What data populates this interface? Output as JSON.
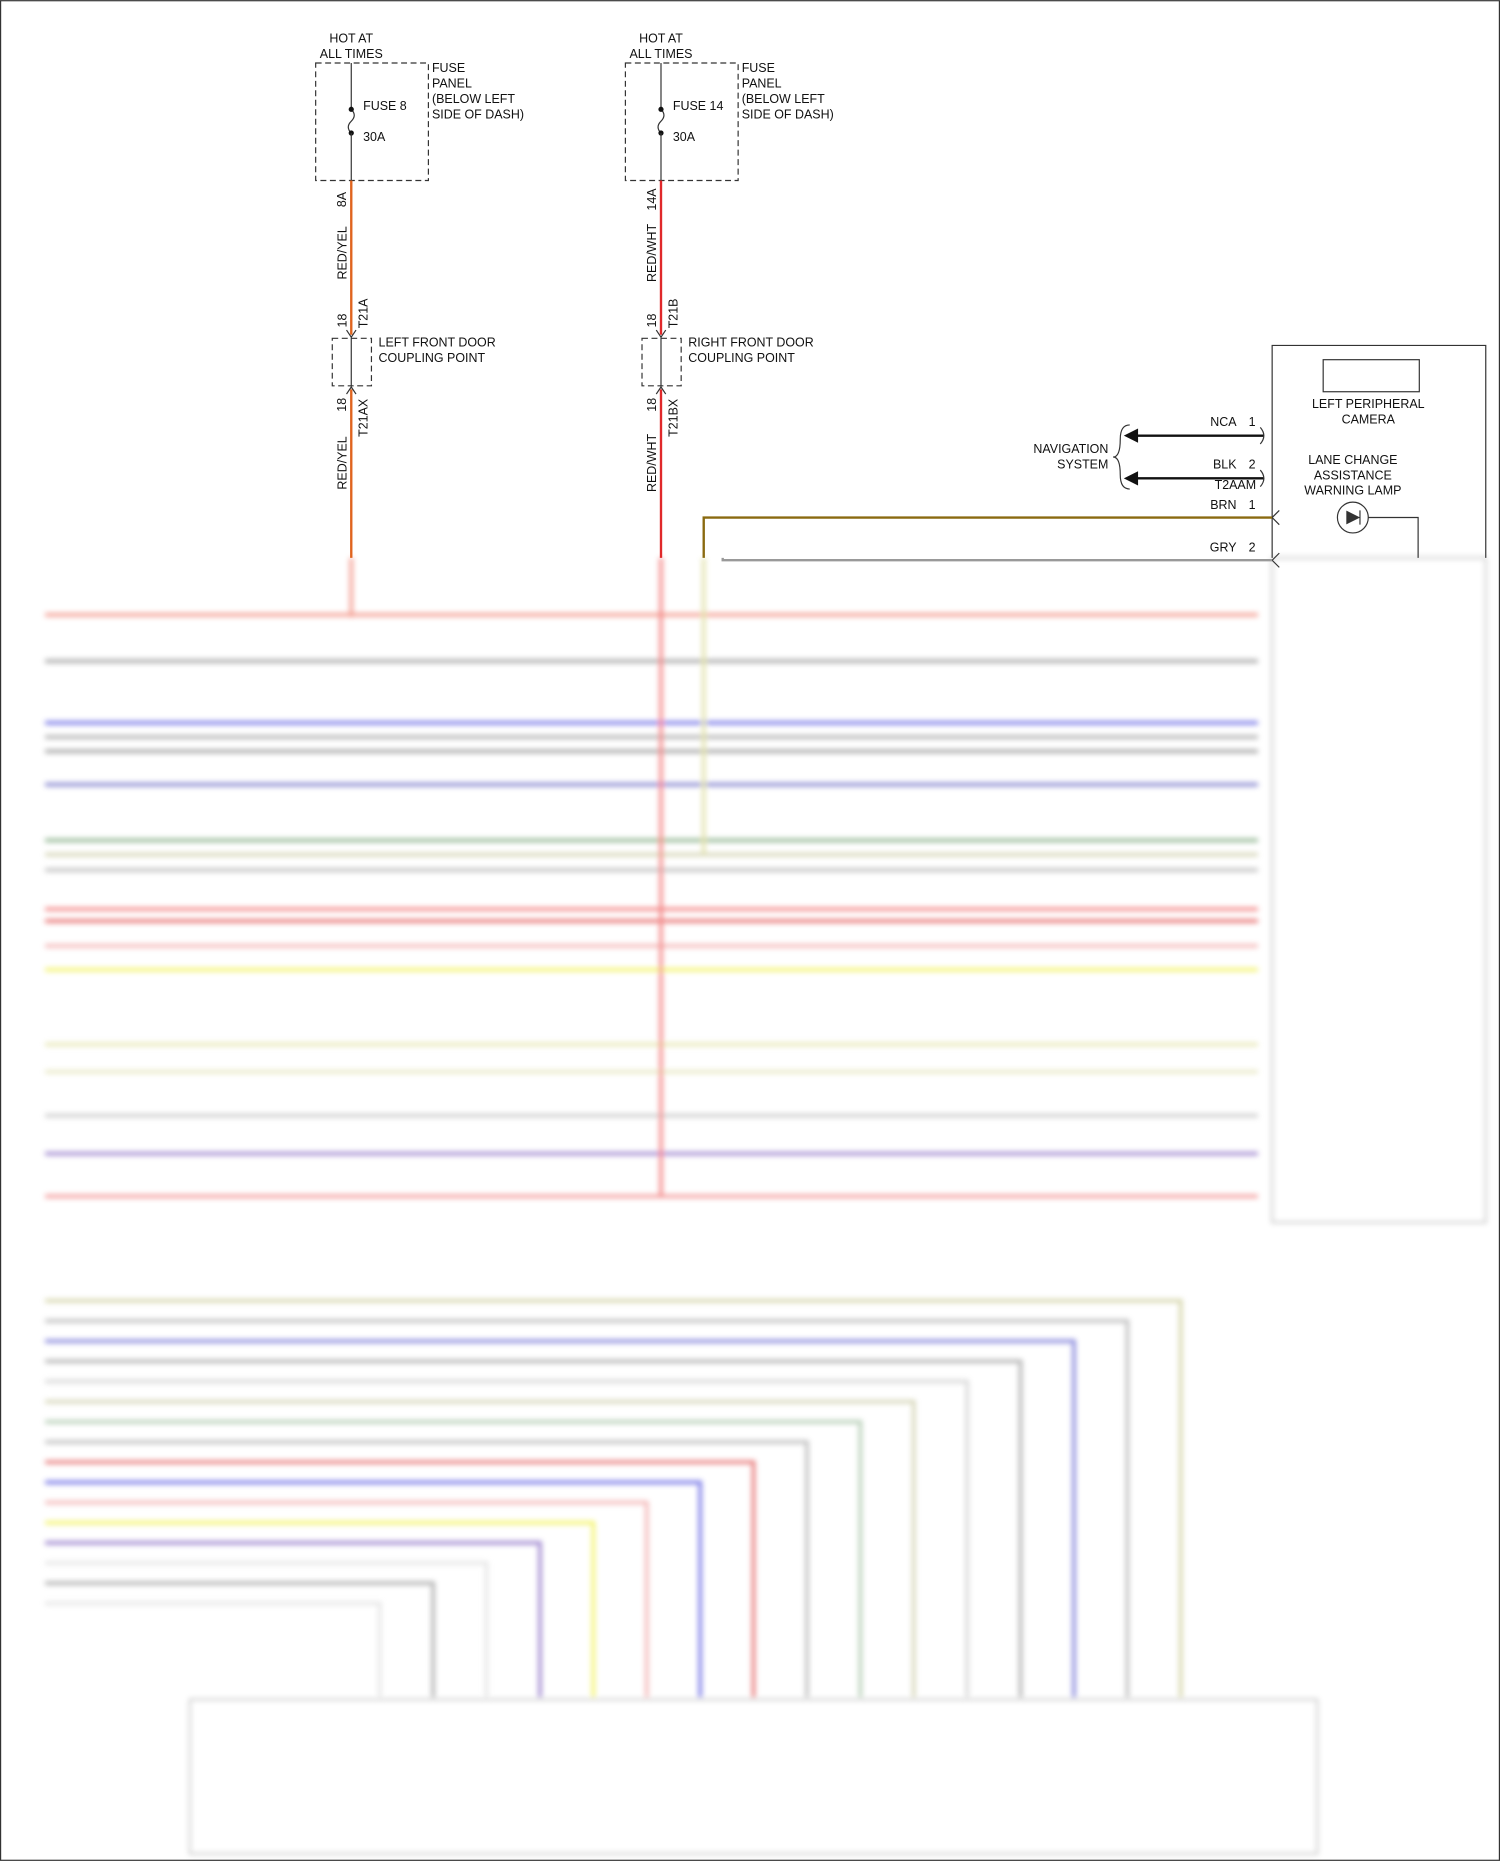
{
  "fuse_circuits": [
    {
      "hot_label": [
        "HOT AT",
        "ALL TIMES"
      ],
      "panel_label": [
        "FUSE",
        "PANEL",
        "(BELOW LEFT",
        "SIDE OF DASH)"
      ],
      "fuse": "FUSE 8",
      "rating": "30A",
      "terminal": "8A",
      "wire_top": "RED/YEL",
      "pin_top": "18",
      "connector_top": "T21A",
      "coupling": [
        "LEFT FRONT DOOR",
        "COUPLING POINT"
      ],
      "pin_bottom": "18",
      "connector_bottom": "T21AX",
      "wire_bottom": "RED/YEL",
      "wire_color": "#e0641e"
    },
    {
      "hot_label": [
        "HOT AT",
        "ALL TIMES"
      ],
      "panel_label": [
        "FUSE",
        "PANEL",
        "(BELOW LEFT",
        "SIDE OF DASH)"
      ],
      "fuse": "FUSE 14",
      "rating": "30A",
      "terminal": "14A",
      "wire_top": "RED/WHT",
      "pin_top": "18",
      "connector_top": "T21B",
      "coupling": [
        "RIGHT FRONT DOOR",
        "COUPLING POINT"
      ],
      "pin_bottom": "18",
      "connector_bottom": "T21BX",
      "wire_bottom": "RED/WHT",
      "wire_color": "#e0282a"
    }
  ],
  "module": {
    "camera": [
      "LEFT PERIPHERAL",
      "CAMERA"
    ],
    "lamp": [
      "LANE CHANGE",
      "ASSISTANCE",
      "WARNING LAMP"
    ],
    "navigation": [
      "NAVIGATION",
      "SYSTEM"
    ],
    "nav_pins": [
      {
        "wire": "NCA",
        "pin": "1"
      },
      {
        "wire": "BLK",
        "pin": "2"
      }
    ],
    "nav_connector": "T2AAM",
    "lamp_pins": [
      {
        "wire": "BRN",
        "pin": "1",
        "color": "#8a6a10"
      },
      {
        "wire": "GRY",
        "pin": "2",
        "color": "#999999"
      }
    ]
  }
}
